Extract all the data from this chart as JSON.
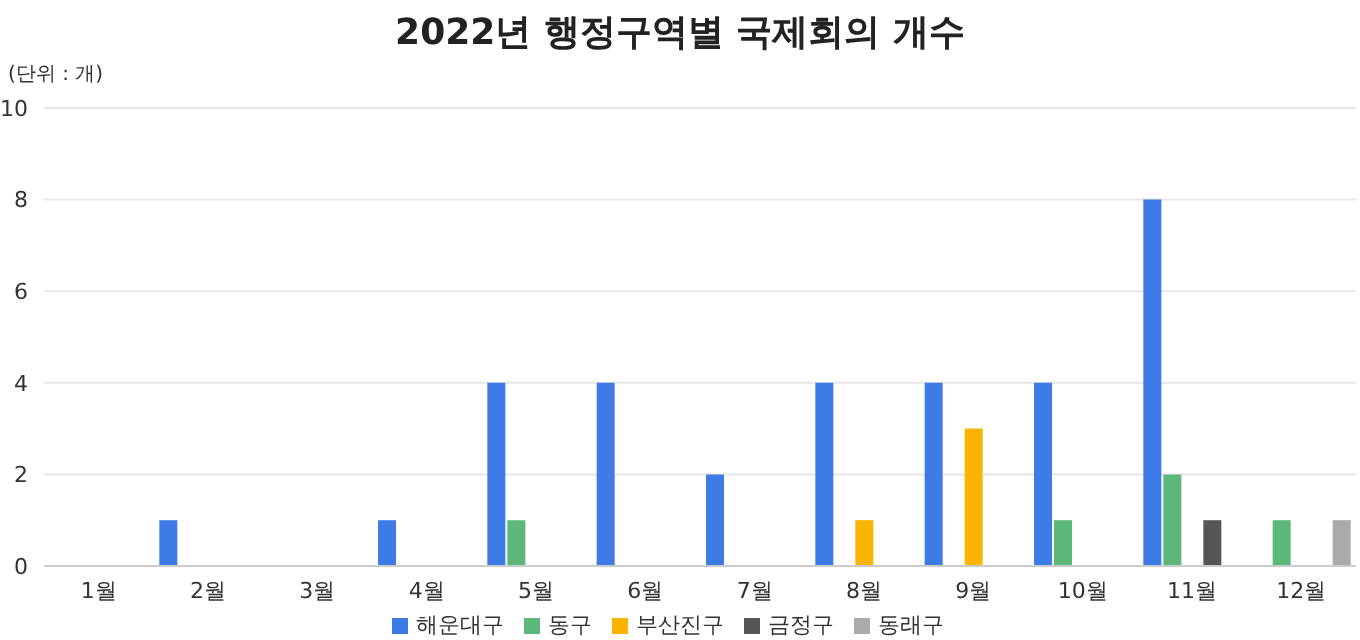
{
  "chart_data": {
    "type": "bar",
    "title": "2022년  행정구역별 국제회의 개수",
    "ylabel": "(단위 : 개)",
    "categories": [
      "1월",
      "2월",
      "3월",
      "4월",
      "5월",
      "6월",
      "7월",
      "8월",
      "9월",
      "10월",
      "11월",
      "12월"
    ],
    "series": [
      {
        "name": "해운대구",
        "color": "#3d7be6",
        "values": [
          0,
          1,
          0,
          1,
          4,
          4,
          2,
          4,
          4,
          4,
          8,
          0
        ]
      },
      {
        "name": "동구",
        "color": "#5cb87a",
        "values": [
          0,
          0,
          0,
          0,
          1,
          0,
          0,
          0,
          0,
          1,
          2,
          1
        ]
      },
      {
        "name": "부산진구",
        "color": "#fbb400",
        "values": [
          0,
          0,
          0,
          0,
          0,
          0,
          0,
          1,
          3,
          0,
          0,
          0
        ]
      },
      {
        "name": "금정구",
        "color": "#555555",
        "values": [
          0,
          0,
          0,
          0,
          0,
          0,
          0,
          0,
          0,
          0,
          1,
          0
        ]
      },
      {
        "name": "동래구",
        "color": "#aaaaaa",
        "values": [
          0,
          0,
          0,
          0,
          0,
          0,
          0,
          0,
          0,
          0,
          0,
          1
        ]
      }
    ],
    "ylim": [
      0,
      10
    ],
    "yticks": [
      0,
      2,
      4,
      6,
      8,
      10
    ],
    "grid": "y",
    "legend": "bottom"
  }
}
